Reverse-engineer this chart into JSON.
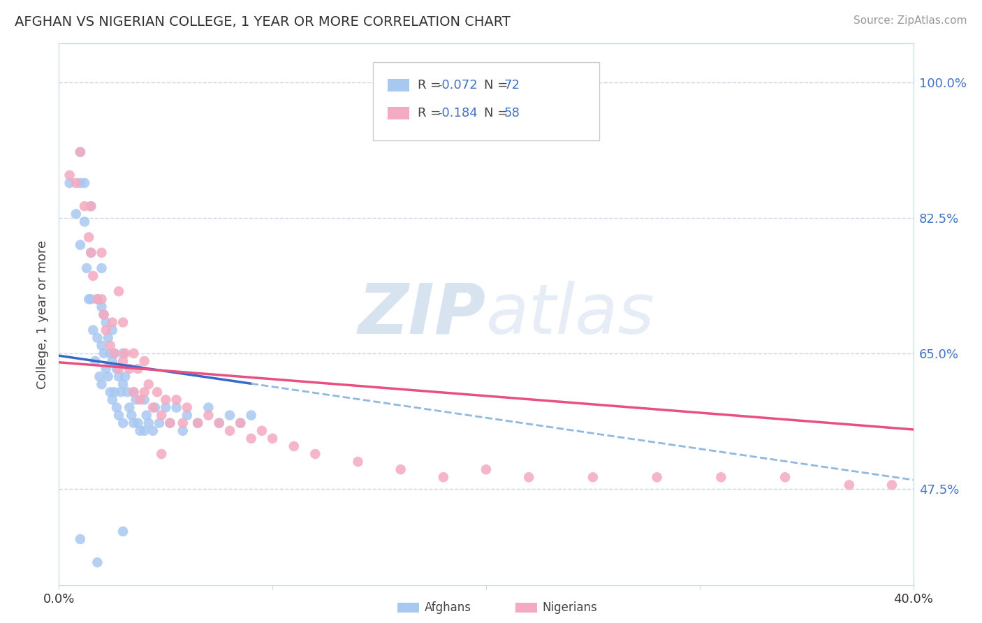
{
  "title": "AFGHAN VS NIGERIAN COLLEGE, 1 YEAR OR MORE CORRELATION CHART",
  "source": "Source: ZipAtlas.com",
  "ylabel": "College, 1 year or more",
  "xlim": [
    0.0,
    0.4
  ],
  "ylim": [
    0.35,
    1.05
  ],
  "yticks": [
    1.0,
    0.825,
    0.65,
    0.475
  ],
  "ytick_labels": [
    "100.0%",
    "82.5%",
    "65.0%",
    "47.5%"
  ],
  "afghan_color": "#a8c8f0",
  "nigerian_color": "#f4aac0",
  "afghan_line_color": "#3568c8",
  "nigerian_line_color": "#e85080",
  "dashed_line_color": "#90b8e0",
  "watermark": "ZIPatlas",
  "grid_color": "#c8d4e8",
  "background_color": "#ffffff",
  "afghans_x": [
    0.005,
    0.008,
    0.01,
    0.01,
    0.01,
    0.012,
    0.012,
    0.013,
    0.014,
    0.015,
    0.015,
    0.015,
    0.016,
    0.017,
    0.018,
    0.018,
    0.019,
    0.02,
    0.02,
    0.02,
    0.02,
    0.021,
    0.021,
    0.022,
    0.022,
    0.023,
    0.023,
    0.024,
    0.024,
    0.025,
    0.025,
    0.025,
    0.026,
    0.026,
    0.027,
    0.027,
    0.028,
    0.028,
    0.029,
    0.03,
    0.03,
    0.03,
    0.031,
    0.032,
    0.033,
    0.034,
    0.035,
    0.035,
    0.036,
    0.037,
    0.038,
    0.04,
    0.04,
    0.041,
    0.042,
    0.044,
    0.045,
    0.047,
    0.05,
    0.052,
    0.055,
    0.058,
    0.06,
    0.065,
    0.07,
    0.075,
    0.08,
    0.085,
    0.09,
    0.01,
    0.018,
    0.03
  ],
  "afghans_y": [
    0.87,
    0.83,
    0.91,
    0.87,
    0.79,
    0.87,
    0.82,
    0.76,
    0.72,
    0.84,
    0.78,
    0.72,
    0.68,
    0.64,
    0.72,
    0.67,
    0.62,
    0.76,
    0.71,
    0.66,
    0.61,
    0.7,
    0.65,
    0.69,
    0.63,
    0.67,
    0.62,
    0.65,
    0.6,
    0.68,
    0.64,
    0.59,
    0.65,
    0.6,
    0.63,
    0.58,
    0.62,
    0.57,
    0.6,
    0.65,
    0.61,
    0.56,
    0.62,
    0.6,
    0.58,
    0.57,
    0.6,
    0.56,
    0.59,
    0.56,
    0.55,
    0.59,
    0.55,
    0.57,
    0.56,
    0.55,
    0.58,
    0.56,
    0.58,
    0.56,
    0.58,
    0.55,
    0.57,
    0.56,
    0.58,
    0.56,
    0.57,
    0.56,
    0.57,
    0.41,
    0.38,
    0.42
  ],
  "nigerians_x": [
    0.005,
    0.008,
    0.01,
    0.012,
    0.014,
    0.015,
    0.015,
    0.016,
    0.018,
    0.02,
    0.02,
    0.021,
    0.022,
    0.024,
    0.025,
    0.026,
    0.028,
    0.03,
    0.03,
    0.031,
    0.033,
    0.035,
    0.035,
    0.037,
    0.038,
    0.04,
    0.04,
    0.042,
    0.044,
    0.046,
    0.048,
    0.05,
    0.052,
    0.055,
    0.058,
    0.06,
    0.065,
    0.07,
    0.075,
    0.08,
    0.085,
    0.09,
    0.095,
    0.1,
    0.11,
    0.12,
    0.14,
    0.16,
    0.18,
    0.2,
    0.22,
    0.25,
    0.28,
    0.31,
    0.34,
    0.37,
    0.39,
    0.028,
    0.048
  ],
  "nigerians_y": [
    0.88,
    0.87,
    0.91,
    0.84,
    0.8,
    0.84,
    0.78,
    0.75,
    0.72,
    0.78,
    0.72,
    0.7,
    0.68,
    0.66,
    0.69,
    0.65,
    0.63,
    0.69,
    0.64,
    0.65,
    0.63,
    0.65,
    0.6,
    0.63,
    0.59,
    0.64,
    0.6,
    0.61,
    0.58,
    0.6,
    0.57,
    0.59,
    0.56,
    0.59,
    0.56,
    0.58,
    0.56,
    0.57,
    0.56,
    0.55,
    0.56,
    0.54,
    0.55,
    0.54,
    0.53,
    0.52,
    0.51,
    0.5,
    0.49,
    0.5,
    0.49,
    0.49,
    0.49,
    0.49,
    0.49,
    0.48,
    0.48,
    0.73,
    0.52
  ]
}
